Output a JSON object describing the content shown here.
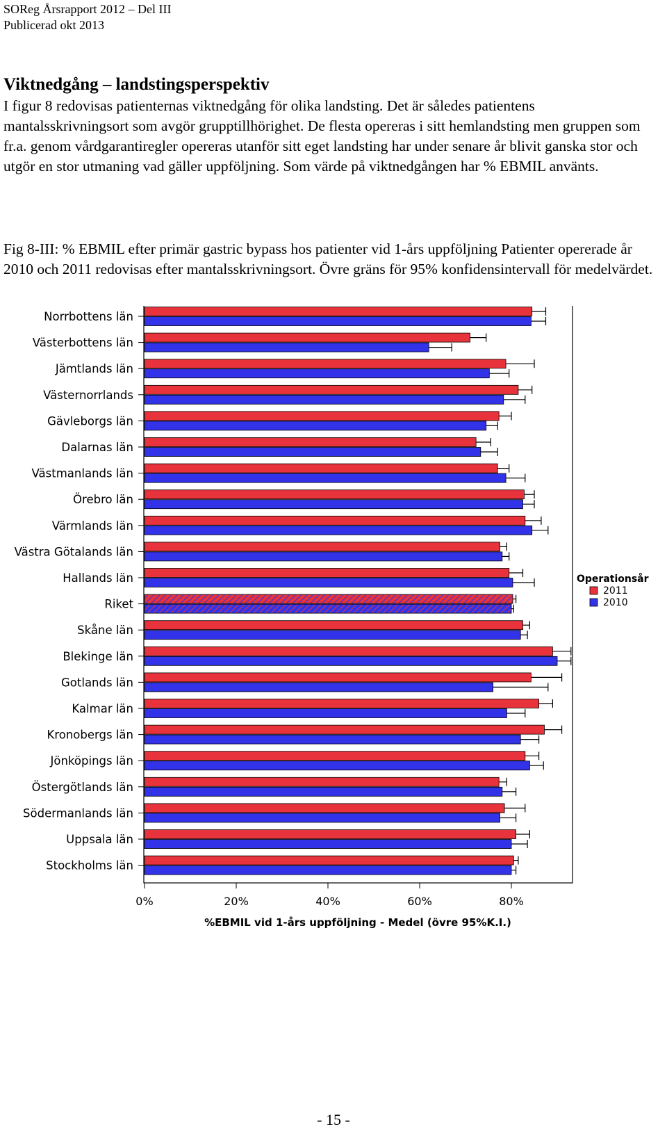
{
  "header": {
    "line1": "SOReg Årsrapport 2012 – Del III",
    "line2": "Publicerad okt 2013"
  },
  "section": {
    "heading": "Viktnedgång – landstingsperspektiv",
    "body": "I figur 8 redovisas patienternas viktnedgång för olika landsting. Det är således patientens mantalsskrivningsort som avgör grupptillhörighet. De flesta opereras i sitt hemlandsting men gruppen som fr.a. genom vårdgarantiregler opereras utanför sitt eget landsting har under senare år blivit ganska stor och utgör en stor utmaning vad gäller uppföljning. Som värde på viktnedgången har % EBMIL använts."
  },
  "figure": {
    "caption": "Fig 8-III: % EBMIL efter primär gastric bypass hos patienter vid 1-års uppföljning Patienter opererade år 2010 och 2011 redovisas efter mantalsskrivningsort. Övre gräns för 95% konfidensintervall för medelvärdet."
  },
  "chart_data": {
    "type": "bar",
    "orientation": "horizontal",
    "categories": [
      "Norrbottens län",
      "Västerbottens län",
      "Jämtlands län",
      "Västernorrlands",
      "Gävleborgs län",
      "Dalarnas län",
      "Västmanlands län",
      "Örebro län",
      "Värmlands län",
      "Västra Götalands län",
      "Hallands län",
      "Riket",
      "Skåne län",
      "Blekinge län",
      "Gotlands län",
      "Kalmar län",
      "Kronobergs län",
      "Jönköpings län",
      "Östergötlands län",
      "Södermanlands län",
      "Uppsala län",
      "Stockholms län"
    ],
    "series": [
      {
        "name": "2011",
        "color": "#e8323c",
        "values": [
          84.5,
          71,
          78.8,
          81.5,
          77.3,
          72.3,
          77,
          82.8,
          83,
          77.5,
          79.5,
          80.3,
          82.5,
          89,
          84.3,
          86,
          87.2,
          83,
          77.3,
          78.5,
          81,
          80.5
        ],
        "upper_ci": [
          87.5,
          74.5,
          85,
          84.5,
          80,
          75.5,
          79.5,
          85,
          86.5,
          79,
          82.5,
          81,
          84,
          93,
          91,
          89,
          91,
          86,
          79,
          83,
          84,
          81.5
        ]
      },
      {
        "name": "2010",
        "color": "#3232e8",
        "values": [
          84.3,
          62,
          75.2,
          78.3,
          74.5,
          73.3,
          78.8,
          82.5,
          84.5,
          78,
          80.3,
          80,
          82,
          90,
          76,
          79,
          82,
          84,
          78,
          77.5,
          80,
          80
        ],
        "upper_ci": [
          87.5,
          67,
          79.5,
          83,
          77,
          77,
          83,
          85,
          88,
          79.5,
          85,
          80.5,
          83.5,
          93,
          88,
          83,
          86,
          87,
          81,
          81,
          83.5,
          81
        ]
      }
    ],
    "highlight_category": "Riket",
    "xlim": [
      0,
      93
    ],
    "xticks": [
      "0%",
      "20%",
      "40%",
      "60%",
      "80%"
    ],
    "xlabel": "%EBMIL vid 1-års uppföljning - Medel (övre 95%K.I.)",
    "legend_title": "Operationsår",
    "legend_position": "right"
  },
  "footer": {
    "page_number": "- 15 -"
  }
}
